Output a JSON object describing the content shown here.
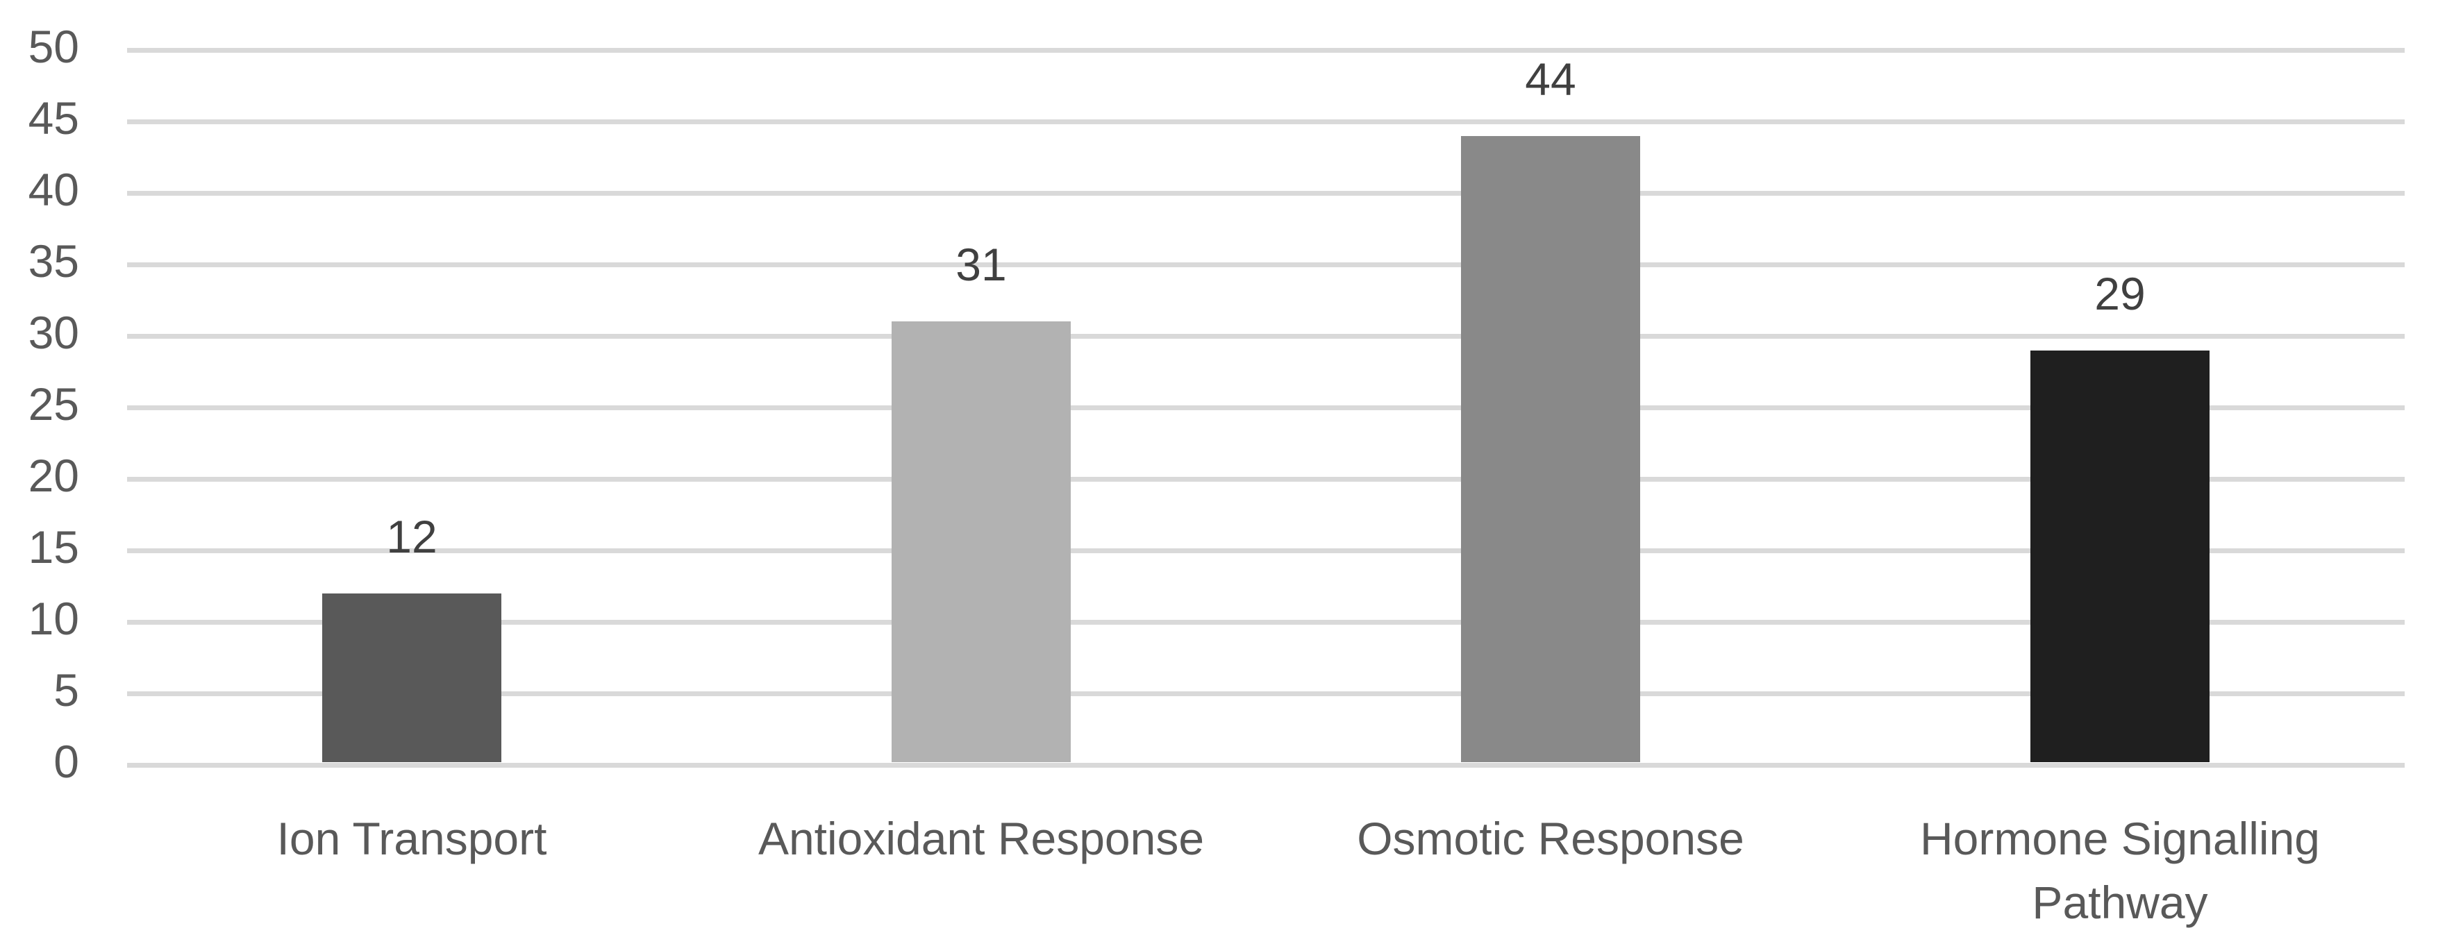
{
  "chart_data": {
    "type": "bar",
    "title": "",
    "categories": [
      "Ion Transport",
      "Antioxidant Response",
      "Osmotic Response",
      "Hormone Signalling Pathway"
    ],
    "values": [
      12,
      31,
      44,
      29
    ],
    "data_labels": [
      "12",
      "31",
      "44",
      "29"
    ],
    "bar_colors": [
      "#595959",
      "#b2b2b2",
      "#898989",
      "#1f1f1f"
    ],
    "xlabel": "",
    "ylabel": "",
    "ylim": [
      0,
      50
    ],
    "ytick_step": 5,
    "ytick_labels": [
      "0",
      "5",
      "10",
      "15",
      "20",
      "25",
      "30",
      "35",
      "40",
      "45",
      "50"
    ],
    "grid": "horizontal",
    "legend_position": "none",
    "styles": {
      "gridline_color": "#d9d9d9",
      "axis_line_color": "#d9d9d9",
      "tick_label_color": "#595959",
      "category_label_color": "#595959",
      "value_label_color": "#404040",
      "background_color": "#ffffff"
    }
  }
}
